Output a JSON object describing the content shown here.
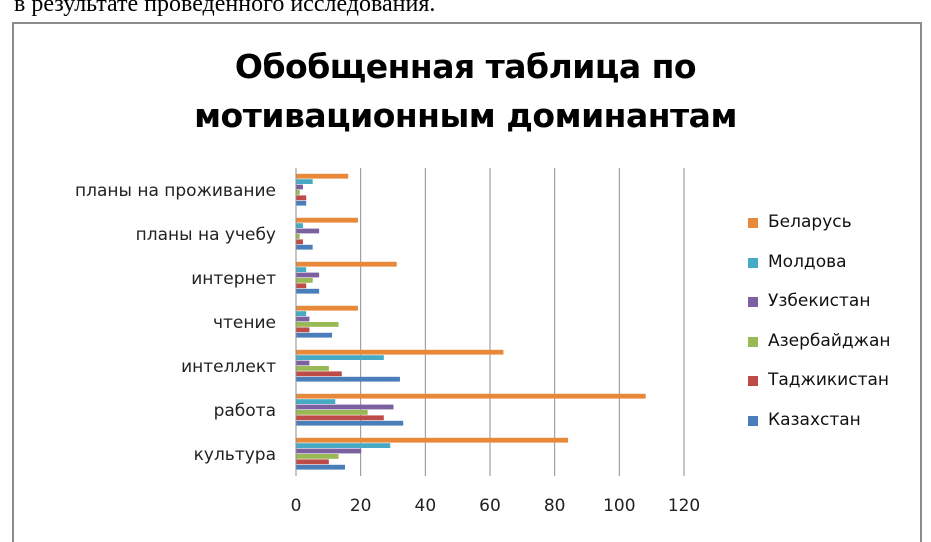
{
  "top_text": "в результате проведенного исследования.",
  "chart_data": {
    "type": "bar",
    "orientation": "horizontal",
    "title": [
      "Обобщенная таблица по",
      "мотивационным доминантам"
    ],
    "categories": [
      "культура",
      "работа",
      "интеллект",
      "чтение",
      "интернет",
      "планы на учебу",
      "планы на проживание"
    ],
    "xlim": [
      0,
      120
    ],
    "xticks": [
      "0",
      "20",
      "40",
      "60",
      "80",
      "100",
      "120"
    ],
    "grid": "vertical",
    "legend_position": "right",
    "series": [
      {
        "name": "Казахстан",
        "color": "#4a7ebb",
        "values": [
          15,
          33,
          32,
          11,
          7,
          5,
          3
        ]
      },
      {
        "name": "Таджикистан",
        "color": "#be4b48",
        "values": [
          10,
          27,
          14,
          4,
          3,
          2,
          3
        ]
      },
      {
        "name": "Азербайджан",
        "color": "#98b954",
        "values": [
          13,
          22,
          10,
          13,
          5,
          1,
          1
        ]
      },
      {
        "name": "Узбекистан",
        "color": "#7d60a0",
        "values": [
          20,
          30,
          4,
          4,
          7,
          7,
          2
        ]
      },
      {
        "name": "Молдова",
        "color": "#46aac5",
        "values": [
          29,
          12,
          27,
          3,
          3,
          2,
          5
        ]
      },
      {
        "name": "Беларусь",
        "color": "#e8883a",
        "values": [
          84,
          108,
          64,
          19,
          31,
          19,
          16
        ]
      }
    ]
  }
}
